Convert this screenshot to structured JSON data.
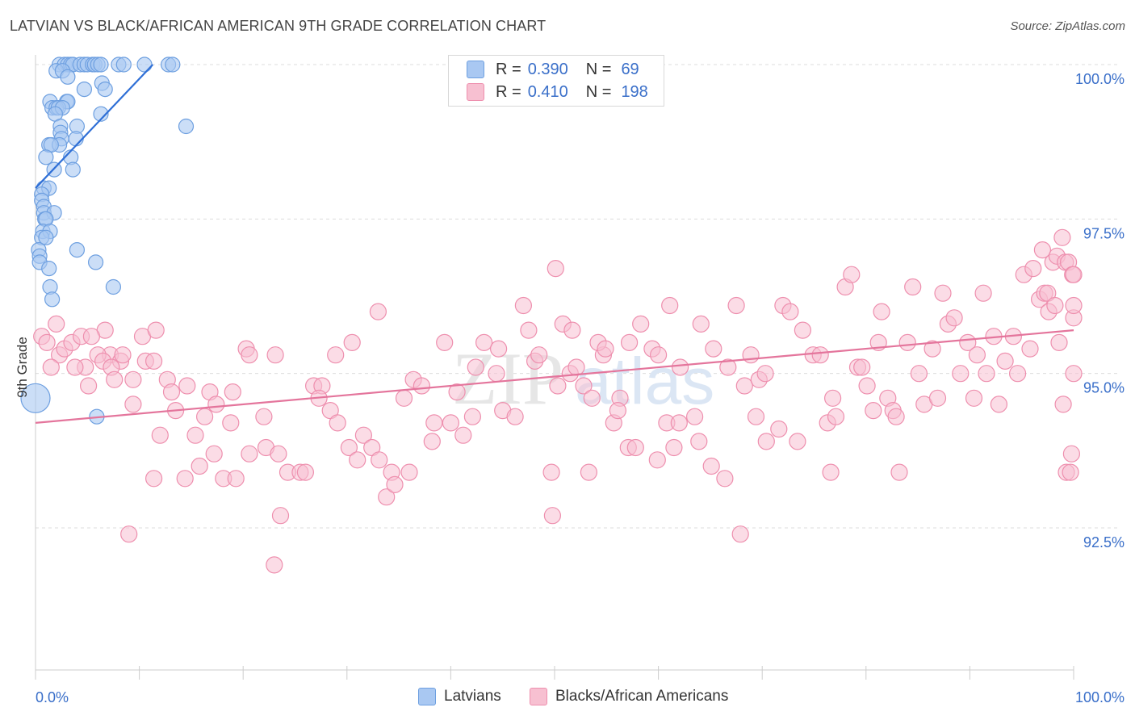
{
  "header": {
    "title": "LATVIAN VS BLACK/AFRICAN AMERICAN 9TH GRADE CORRELATION CHART",
    "source": "Source: ZipAtlas.com"
  },
  "legend": {
    "rows": [
      {
        "r_label": "R =",
        "r_value": "0.390",
        "n_label": "N =",
        "n_value": "69",
        "color": "#a9c8f2",
        "stroke": "#6d9fe0"
      },
      {
        "r_label": "R =",
        "r_value": "0.410",
        "n_label": "N =",
        "n_value": "198",
        "color": "#f7c0d1",
        "stroke": "#ee8fae"
      }
    ]
  },
  "bottom_legend": {
    "items": [
      {
        "label": "Latvians",
        "color": "#a9c8f2",
        "stroke": "#6d9fe0"
      },
      {
        "label": "Blacks/African Americans",
        "color": "#f7c0d1",
        "stroke": "#ee8fae"
      }
    ]
  },
  "watermark": {
    "part1": "ZIP",
    "part2": "atlas"
  },
  "chart_data": {
    "type": "scatter",
    "title": "LATVIAN VS BLACK/AFRICAN AMERICAN 9TH GRADE CORRELATION CHART",
    "xlabel": "",
    "ylabel": "9th Grade",
    "xlim": [
      0,
      100
    ],
    "ylim": [
      90.0,
      100.2
    ],
    "x_tick_labels": [
      "0.0%",
      "100.0%"
    ],
    "y_ticks": [
      92.5,
      95.0,
      97.5,
      100.0
    ],
    "y_tick_labels": [
      "92.5%",
      "95.0%",
      "97.5%",
      "100.0%"
    ],
    "grid": true,
    "legend_position": "top-center",
    "series": [
      {
        "name": "Latvians",
        "color": "#6d9fe0",
        "fill": "#a9c8f2",
        "r": 0.39,
        "n": 69,
        "trend": {
          "x": [
            0,
            11.3
          ],
          "y": [
            98.0,
            100.0
          ],
          "color": "#2f6fd6"
        },
        "points": [
          [
            2.3,
            100.0
          ],
          [
            2.8,
            100.0
          ],
          [
            3.1,
            100.0
          ],
          [
            3.4,
            100.0
          ],
          [
            3.6,
            100.0
          ],
          [
            4.3,
            100.0
          ],
          [
            4.7,
            100.0
          ],
          [
            5.0,
            100.0
          ],
          [
            5.5,
            100.0
          ],
          [
            5.7,
            100.0
          ],
          [
            6.0,
            100.0
          ],
          [
            6.3,
            100.0
          ],
          [
            8.0,
            100.0
          ],
          [
            8.5,
            100.0
          ],
          [
            10.5,
            100.0
          ],
          [
            12.8,
            100.0
          ],
          [
            13.2,
            100.0
          ],
          [
            2.0,
            99.9
          ],
          [
            2.6,
            99.9
          ],
          [
            3.1,
            99.8
          ],
          [
            6.4,
            99.7
          ],
          [
            4.7,
            99.6
          ],
          [
            6.7,
            99.6
          ],
          [
            1.4,
            99.4
          ],
          [
            3.0,
            99.4
          ],
          [
            3.1,
            99.4
          ],
          [
            1.6,
            99.3
          ],
          [
            2.0,
            99.3
          ],
          [
            2.2,
            99.3
          ],
          [
            2.6,
            99.3
          ],
          [
            1.9,
            99.2
          ],
          [
            6.3,
            99.2
          ],
          [
            14.5,
            99.0
          ],
          [
            2.4,
            99.0
          ],
          [
            4.0,
            99.0
          ],
          [
            2.4,
            98.9
          ],
          [
            2.5,
            98.8
          ],
          [
            3.9,
            98.8
          ],
          [
            1.3,
            98.7
          ],
          [
            2.3,
            98.7
          ],
          [
            1.5,
            98.7
          ],
          [
            1.0,
            98.5
          ],
          [
            3.4,
            98.5
          ],
          [
            1.8,
            98.3
          ],
          [
            3.6,
            98.3
          ],
          [
            0.8,
            98.0
          ],
          [
            1.3,
            98.0
          ],
          [
            0.6,
            97.9
          ],
          [
            0.6,
            97.8
          ],
          [
            0.8,
            97.7
          ],
          [
            0.8,
            97.6
          ],
          [
            1.8,
            97.6
          ],
          [
            0.9,
            97.5
          ],
          [
            1.0,
            97.5
          ],
          [
            0.7,
            97.3
          ],
          [
            1.4,
            97.3
          ],
          [
            0.6,
            97.2
          ],
          [
            1.0,
            97.2
          ],
          [
            4.0,
            97.0
          ],
          [
            0.3,
            97.0
          ],
          [
            0.4,
            96.9
          ],
          [
            0.4,
            96.8
          ],
          [
            5.8,
            96.8
          ],
          [
            1.3,
            96.7
          ],
          [
            1.4,
            96.4
          ],
          [
            7.5,
            96.4
          ],
          [
            1.6,
            96.2
          ],
          [
            0.0,
            94.6
          ],
          [
            5.9,
            94.3
          ]
        ]
      },
      {
        "name": "Blacks/African Americans",
        "color": "#ee8fae",
        "fill": "#f7c0d1",
        "r": 0.41,
        "n": 198,
        "trend": {
          "x": [
            0,
            100
          ],
          "y": [
            94.2,
            95.7
          ],
          "color": "#e4759c"
        },
        "points": [
          [
            2.0,
            95.8
          ],
          [
            0.6,
            95.6
          ],
          [
            1.1,
            95.5
          ],
          [
            2.3,
            95.3
          ],
          [
            2.8,
            95.4
          ],
          [
            3.5,
            95.5
          ],
          [
            4.4,
            95.6
          ],
          [
            4.8,
            95.1
          ],
          [
            6.7,
            95.7
          ],
          [
            7.2,
            95.3
          ],
          [
            8.2,
            95.2
          ],
          [
            8.4,
            95.3
          ],
          [
            10.3,
            95.6
          ],
          [
            10.6,
            95.2
          ],
          [
            11.4,
            95.2
          ],
          [
            11.6,
            95.7
          ],
          [
            1.5,
            95.1
          ],
          [
            3.8,
            95.1
          ],
          [
            5.4,
            95.6
          ],
          [
            6.0,
            95.3
          ],
          [
            6.5,
            95.2
          ],
          [
            7.3,
            95.1
          ],
          [
            7.6,
            94.9
          ],
          [
            9.4,
            94.9
          ],
          [
            12.7,
            94.9
          ],
          [
            13.1,
            94.7
          ],
          [
            14.6,
            94.8
          ],
          [
            16.8,
            94.7
          ],
          [
            19.0,
            94.7
          ],
          [
            20.3,
            95.4
          ],
          [
            20.6,
            95.3
          ],
          [
            5.1,
            94.8
          ],
          [
            9.4,
            94.5
          ],
          [
            12.0,
            94.0
          ],
          [
            13.5,
            94.4
          ],
          [
            15.4,
            94.0
          ],
          [
            16.3,
            94.3
          ],
          [
            17.4,
            94.5
          ],
          [
            18.8,
            94.2
          ],
          [
            20.6,
            93.7
          ],
          [
            22.0,
            94.3
          ],
          [
            22.2,
            93.8
          ],
          [
            23.1,
            95.3
          ],
          [
            23.4,
            93.7
          ],
          [
            14.4,
            93.3
          ],
          [
            11.4,
            93.3
          ],
          [
            15.8,
            93.5
          ],
          [
            17.2,
            93.7
          ],
          [
            18.1,
            93.3
          ],
          [
            19.3,
            93.3
          ],
          [
            24.3,
            93.4
          ],
          [
            25.5,
            93.4
          ],
          [
            26.8,
            94.8
          ],
          [
            27.6,
            94.8
          ],
          [
            28.4,
            94.4
          ],
          [
            29.1,
            94.2
          ],
          [
            30.2,
            93.8
          ],
          [
            31.6,
            94.0
          ],
          [
            9.0,
            92.4
          ],
          [
            23.6,
            92.7
          ],
          [
            23.0,
            91.9
          ],
          [
            26.0,
            93.4
          ],
          [
            27.3,
            94.6
          ],
          [
            28.9,
            95.3
          ],
          [
            30.5,
            95.5
          ],
          [
            31.0,
            93.6
          ],
          [
            32.4,
            93.8
          ],
          [
            33.1,
            93.6
          ],
          [
            33.8,
            93.0
          ],
          [
            34.3,
            93.4
          ],
          [
            34.6,
            93.2
          ],
          [
            36.0,
            93.4
          ],
          [
            33.0,
            96.0
          ],
          [
            35.5,
            94.6
          ],
          [
            36.4,
            94.9
          ],
          [
            37.2,
            94.8
          ],
          [
            38.2,
            93.9
          ],
          [
            38.4,
            94.2
          ],
          [
            39.4,
            95.5
          ],
          [
            40.0,
            94.2
          ],
          [
            40.6,
            94.7
          ],
          [
            41.2,
            94.0
          ],
          [
            42.1,
            94.3
          ],
          [
            42.4,
            95.1
          ],
          [
            43.2,
            95.5
          ],
          [
            44.4,
            95.0
          ],
          [
            44.6,
            95.4
          ],
          [
            45.0,
            94.4
          ],
          [
            46.2,
            94.3
          ],
          [
            47.5,
            95.7
          ],
          [
            48.1,
            95.2
          ],
          [
            48.5,
            95.3
          ],
          [
            49.7,
            93.4
          ],
          [
            50.3,
            94.8
          ],
          [
            51.5,
            95.0
          ],
          [
            52.1,
            95.1
          ],
          [
            53.3,
            93.4
          ],
          [
            54.7,
            95.3
          ],
          [
            55.7,
            94.2
          ],
          [
            56.3,
            94.6
          ],
          [
            57.1,
            93.8
          ],
          [
            57.8,
            93.8
          ],
          [
            47.0,
            96.1
          ],
          [
            49.8,
            92.7
          ],
          [
            50.1,
            96.7
          ],
          [
            50.8,
            95.8
          ],
          [
            51.7,
            95.7
          ],
          [
            52.8,
            94.8
          ],
          [
            53.6,
            94.6
          ],
          [
            54.2,
            95.5
          ],
          [
            54.9,
            95.4
          ],
          [
            56.1,
            94.4
          ],
          [
            57.2,
            95.5
          ],
          [
            58.3,
            95.8
          ],
          [
            59.4,
            95.4
          ],
          [
            60.0,
            95.3
          ],
          [
            60.8,
            94.2
          ],
          [
            61.5,
            93.8
          ],
          [
            62.0,
            94.2
          ],
          [
            63.5,
            94.3
          ],
          [
            63.9,
            93.9
          ],
          [
            65.3,
            95.4
          ],
          [
            66.4,
            93.3
          ],
          [
            67.5,
            96.1
          ],
          [
            68.3,
            94.8
          ],
          [
            68.9,
            95.3
          ],
          [
            69.7,
            94.9
          ],
          [
            70.3,
            95.0
          ],
          [
            71.6,
            94.1
          ],
          [
            72.0,
            96.1
          ],
          [
            59.9,
            93.6
          ],
          [
            61.1,
            96.1
          ],
          [
            62.1,
            95.1
          ],
          [
            64.1,
            95.8
          ],
          [
            65.1,
            93.5
          ],
          [
            66.7,
            95.1
          ],
          [
            67.9,
            92.4
          ],
          [
            69.4,
            94.3
          ],
          [
            70.4,
            93.9
          ],
          [
            72.7,
            96.0
          ],
          [
            73.4,
            93.9
          ],
          [
            73.9,
            95.7
          ],
          [
            74.9,
            95.3
          ],
          [
            75.6,
            95.3
          ],
          [
            76.3,
            94.2
          ],
          [
            76.6,
            93.4
          ],
          [
            76.8,
            94.6
          ],
          [
            77.1,
            94.3
          ],
          [
            78.0,
            96.4
          ],
          [
            78.6,
            96.6
          ],
          [
            79.2,
            95.1
          ],
          [
            79.6,
            95.1
          ],
          [
            80.1,
            94.8
          ],
          [
            80.7,
            94.4
          ],
          [
            81.2,
            95.5
          ],
          [
            81.5,
            96.0
          ],
          [
            82.1,
            94.6
          ],
          [
            82.6,
            94.4
          ],
          [
            82.9,
            94.3
          ],
          [
            83.2,
            93.4
          ],
          [
            84.0,
            95.5
          ],
          [
            84.5,
            96.4
          ],
          [
            85.1,
            95.0
          ],
          [
            85.6,
            94.5
          ],
          [
            86.4,
            95.4
          ],
          [
            86.9,
            94.6
          ],
          [
            87.4,
            96.3
          ],
          [
            87.9,
            95.8
          ],
          [
            88.5,
            95.9
          ],
          [
            89.1,
            95.0
          ],
          [
            89.8,
            95.5
          ],
          [
            90.4,
            94.6
          ],
          [
            90.7,
            95.3
          ],
          [
            91.3,
            96.3
          ],
          [
            91.6,
            95.0
          ],
          [
            92.3,
            95.6
          ],
          [
            92.8,
            94.5
          ],
          [
            93.4,
            95.2
          ],
          [
            94.2,
            95.6
          ],
          [
            94.6,
            95.0
          ],
          [
            95.2,
            96.6
          ],
          [
            95.8,
            95.4
          ],
          [
            96.1,
            96.7
          ],
          [
            96.7,
            96.2
          ],
          [
            97.2,
            96.3
          ],
          [
            97.6,
            96.0
          ],
          [
            98.0,
            96.8
          ],
          [
            98.4,
            96.9
          ],
          [
            98.9,
            97.2
          ],
          [
            99.2,
            96.8
          ],
          [
            99.5,
            96.8
          ],
          [
            99.9,
            96.6
          ],
          [
            100.0,
            96.6
          ],
          [
            97.0,
            97.0
          ],
          [
            97.5,
            96.3
          ],
          [
            98.2,
            96.1
          ],
          [
            98.6,
            95.5
          ],
          [
            99.0,
            94.5
          ],
          [
            99.3,
            93.4
          ],
          [
            99.7,
            93.4
          ],
          [
            100.0,
            95.9
          ],
          [
            100.0,
            96.1
          ],
          [
            100.0,
            95.0
          ],
          [
            99.8,
            93.7
          ]
        ]
      }
    ]
  }
}
